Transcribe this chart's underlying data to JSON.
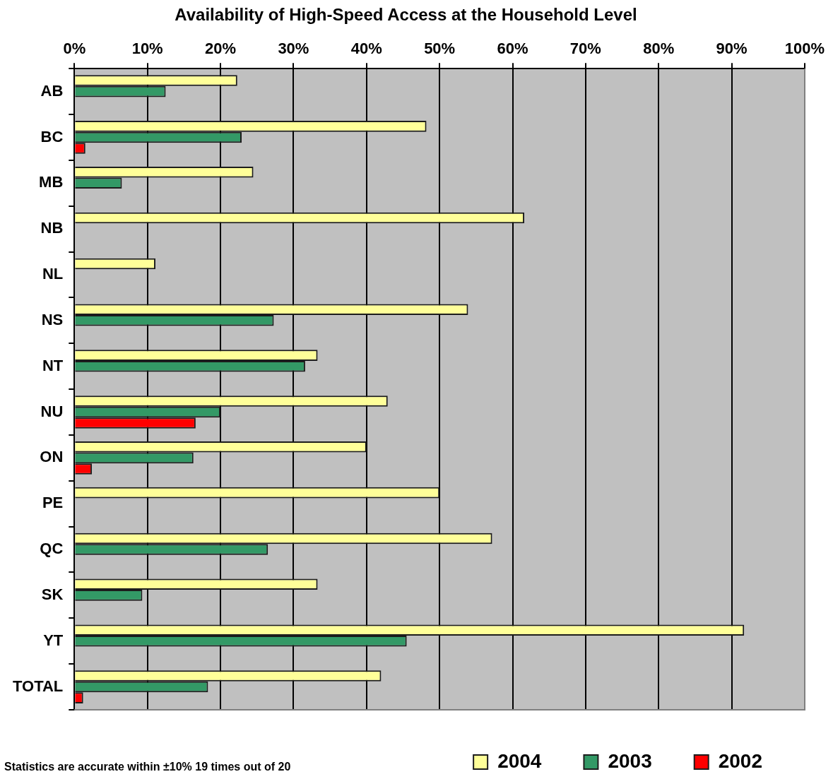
{
  "chart_data": {
    "type": "bar",
    "orientation": "horizontal",
    "title": "Availability of High-Speed Access at the Household Level",
    "categories": [
      "AB",
      "BC",
      "MB",
      "NB",
      "NL",
      "NS",
      "NT",
      "NU",
      "ON",
      "PE",
      "QC",
      "SK",
      "YT",
      "TOTAL"
    ],
    "series": [
      {
        "name": "2004",
        "color": "#ffff99",
        "values": [
          22.3,
          48.2,
          24.5,
          61.6,
          11.1,
          53.9,
          33.3,
          42.9,
          40.0,
          50.0,
          57.2,
          33.3,
          91.7,
          42.0
        ]
      },
      {
        "name": "2003",
        "color": "#339966",
        "values": [
          12.5,
          22.9,
          6.5,
          null,
          null,
          27.3,
          31.6,
          20.0,
          16.3,
          null,
          26.5,
          9.3,
          45.5,
          18.3
        ]
      },
      {
        "name": "2002",
        "color": "#ff0000",
        "values": [
          null,
          1.5,
          null,
          null,
          null,
          null,
          null,
          16.6,
          2.4,
          null,
          null,
          null,
          null,
          1.2
        ]
      }
    ],
    "xlim": [
      0,
      100
    ],
    "xticks": [
      {
        "value": 0,
        "label": "0%"
      },
      {
        "value": 10,
        "label": "10%"
      },
      {
        "value": 20,
        "label": "20%"
      },
      {
        "value": 30,
        "label": "30%"
      },
      {
        "value": 40,
        "label": "40%"
      },
      {
        "value": 50,
        "label": "50%"
      },
      {
        "value": 60,
        "label": "60%"
      },
      {
        "value": 70,
        "label": "70%"
      },
      {
        "value": 80,
        "label": "80%"
      },
      {
        "value": 90,
        "label": "90%"
      },
      {
        "value": 100,
        "label": "100%"
      }
    ],
    "grid": "x",
    "legend": "bottom right",
    "annotations": [
      "Statistics are accurate within ±10% 19 times out of 20"
    ]
  }
}
